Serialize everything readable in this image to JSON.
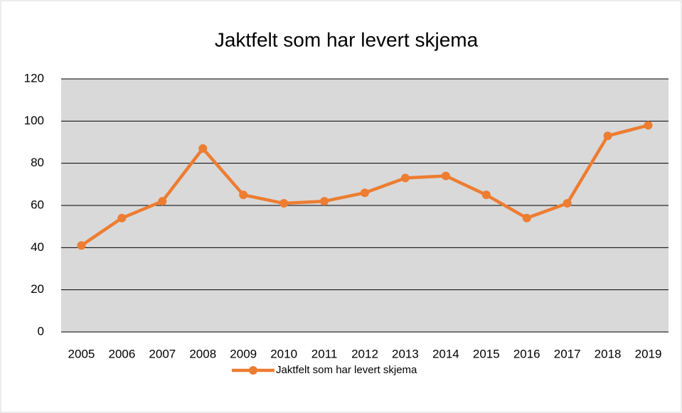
{
  "chart_data": {
    "type": "line",
    "title": "Jaktfelt som har levert skjema",
    "categories": [
      "2005",
      "2006",
      "2007",
      "2008",
      "2009",
      "2010",
      "2011",
      "2012",
      "2013",
      "2014",
      "2015",
      "2016",
      "2017",
      "2018",
      "2019"
    ],
    "series": [
      {
        "name": "Jaktfelt som har levert skjema",
        "color": "#ed7d31",
        "values": [
          41,
          54,
          62,
          87,
          65,
          61,
          62,
          66,
          73,
          74,
          65,
          54,
          61,
          93,
          98
        ]
      }
    ],
    "ylim": [
      0,
      120
    ],
    "yticks": [
      0,
      20,
      40,
      60,
      80,
      100,
      120
    ],
    "grid": true,
    "legend": "bottom"
  }
}
